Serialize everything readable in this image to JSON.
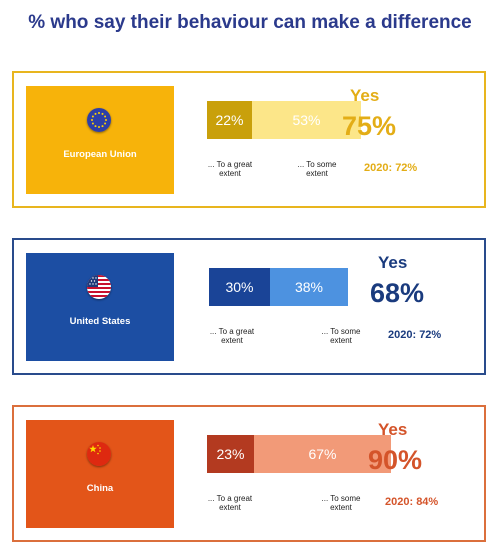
{
  "title": "% who say their behaviour can make a difference",
  "colors": {
    "eu_border": "#e8b51e",
    "eu_flag_bg": "#f7b30a",
    "eu_great": "#c9a00b",
    "eu_some": "#fce689",
    "eu_accent": "#e3ad16",
    "us_border": "#294b8c",
    "us_flag_bg": "#1c4ea3",
    "us_great": "#1a4497",
    "us_some": "#4d92e0",
    "us_accent": "#1a3b7e",
    "cn_border": "#db6f3c",
    "cn_flag_bg": "#e35519",
    "cn_great": "#b33a20",
    "cn_some": "#f29a78",
    "cn_accent": "#d4542a"
  },
  "chart_data": {
    "type": "bar",
    "title": "% who say their behaviour can make a difference",
    "stacked": true,
    "categories": [
      "European Union",
      "United States",
      "China"
    ],
    "series": [
      {
        "name": "... To a great extent",
        "values": [
          22,
          30,
          23
        ]
      },
      {
        "name": "... To some extent",
        "values": [
          53,
          38,
          67
        ]
      }
    ],
    "totals": [
      75,
      68,
      90
    ],
    "previous_year": [
      72,
      72,
      84
    ]
  },
  "regions": [
    {
      "name": "European Union",
      "flag_icon": "eu-flag-icon",
      "great": "22%",
      "some": "53%",
      "great_label_1": "... To a great",
      "great_label_2": "extent",
      "some_label_1": "... To some",
      "some_label_2": "extent",
      "yes": "Yes",
      "total": "75%",
      "prev": "2020: 72%"
    },
    {
      "name": "United States",
      "flag_icon": "us-flag-icon",
      "great": "30%",
      "some": "38%",
      "great_label_1": "... To a great",
      "great_label_2": "extent",
      "some_label_1": "... To some",
      "some_label_2": "extent",
      "yes": "Yes",
      "total": "68%",
      "prev": "2020: 72%"
    },
    {
      "name": "China",
      "flag_icon": "china-flag-icon",
      "great": "23%",
      "some": "67%",
      "great_label_1": "... To a great",
      "great_label_2": "extent",
      "some_label_1": "... To some",
      "some_label_2": "extent",
      "yes": "Yes",
      "total": "90%",
      "prev": "2020: 84%"
    }
  ]
}
